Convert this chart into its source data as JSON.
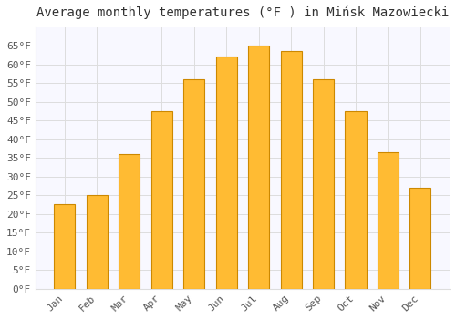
{
  "title": "Average monthly temperatures (°F ) in Mińsk Mazowiecki",
  "months": [
    "Jan",
    "Feb",
    "Mar",
    "Apr",
    "May",
    "Jun",
    "Jul",
    "Aug",
    "Sep",
    "Oct",
    "Nov",
    "Dec"
  ],
  "values": [
    22.5,
    25,
    36,
    47.5,
    56,
    62,
    65,
    63.5,
    56,
    47.5,
    36.5,
    27
  ],
  "bar_color": "#FFBB33",
  "bar_edge_color": "#CC8800",
  "background_color": "#FFFFFF",
  "plot_bg_color": "#F8F8FF",
  "grid_color": "#DDDDDD",
  "text_color": "#555555",
  "title_color": "#333333",
  "ylim": [
    0,
    70
  ],
  "yticks": [
    0,
    5,
    10,
    15,
    20,
    25,
    30,
    35,
    40,
    45,
    50,
    55,
    60,
    65
  ],
  "ytick_labels": [
    "0°F",
    "5°F",
    "10°F",
    "15°F",
    "20°F",
    "25°F",
    "30°F",
    "35°F",
    "40°F",
    "45°F",
    "50°F",
    "55°F",
    "60°F",
    "65°F"
  ],
  "title_fontsize": 10,
  "tick_fontsize": 8,
  "figsize": [
    5.0,
    3.5
  ],
  "dpi": 100
}
